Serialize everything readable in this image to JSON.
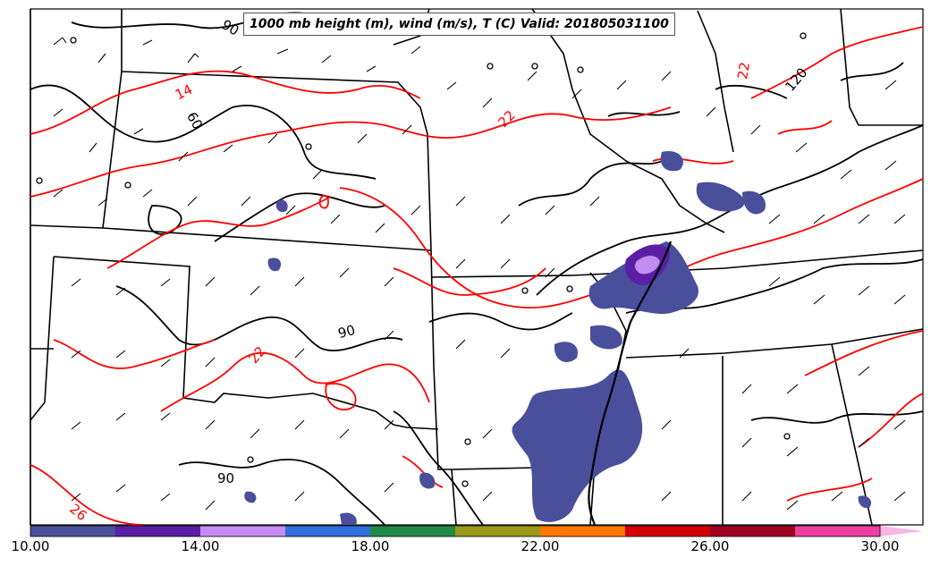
{
  "title": "1000 mb height (m), wind (m/s), T (C) Valid: 201805031100",
  "colorbar": {
    "ticks": [
      "10.00",
      "14.00",
      "18.00",
      "22.00",
      "26.00",
      "30.00"
    ],
    "colors": [
      "#4a4f9c",
      "#5b1fa6",
      "#c48cf0",
      "#2f6fdc",
      "#1f8a47",
      "#9a9a1a",
      "#ff7700",
      "#d40000",
      "#a0001e",
      "#ef3ea0",
      "#f7b6e6"
    ]
  },
  "contour_labels": {
    "height_90_top": "90",
    "height_60": "60",
    "height_120": "120",
    "height_90_mid": "90",
    "height_90_bottom": "90",
    "temp_14": "14",
    "temp_22_north": "22",
    "temp_22_ne": "22",
    "temp_22_west": "22",
    "temp_26": "26"
  },
  "colors": {
    "height_contour": "#000000",
    "temp_contour": "#ff0000",
    "precip_fill": "#4a4f9c"
  }
}
